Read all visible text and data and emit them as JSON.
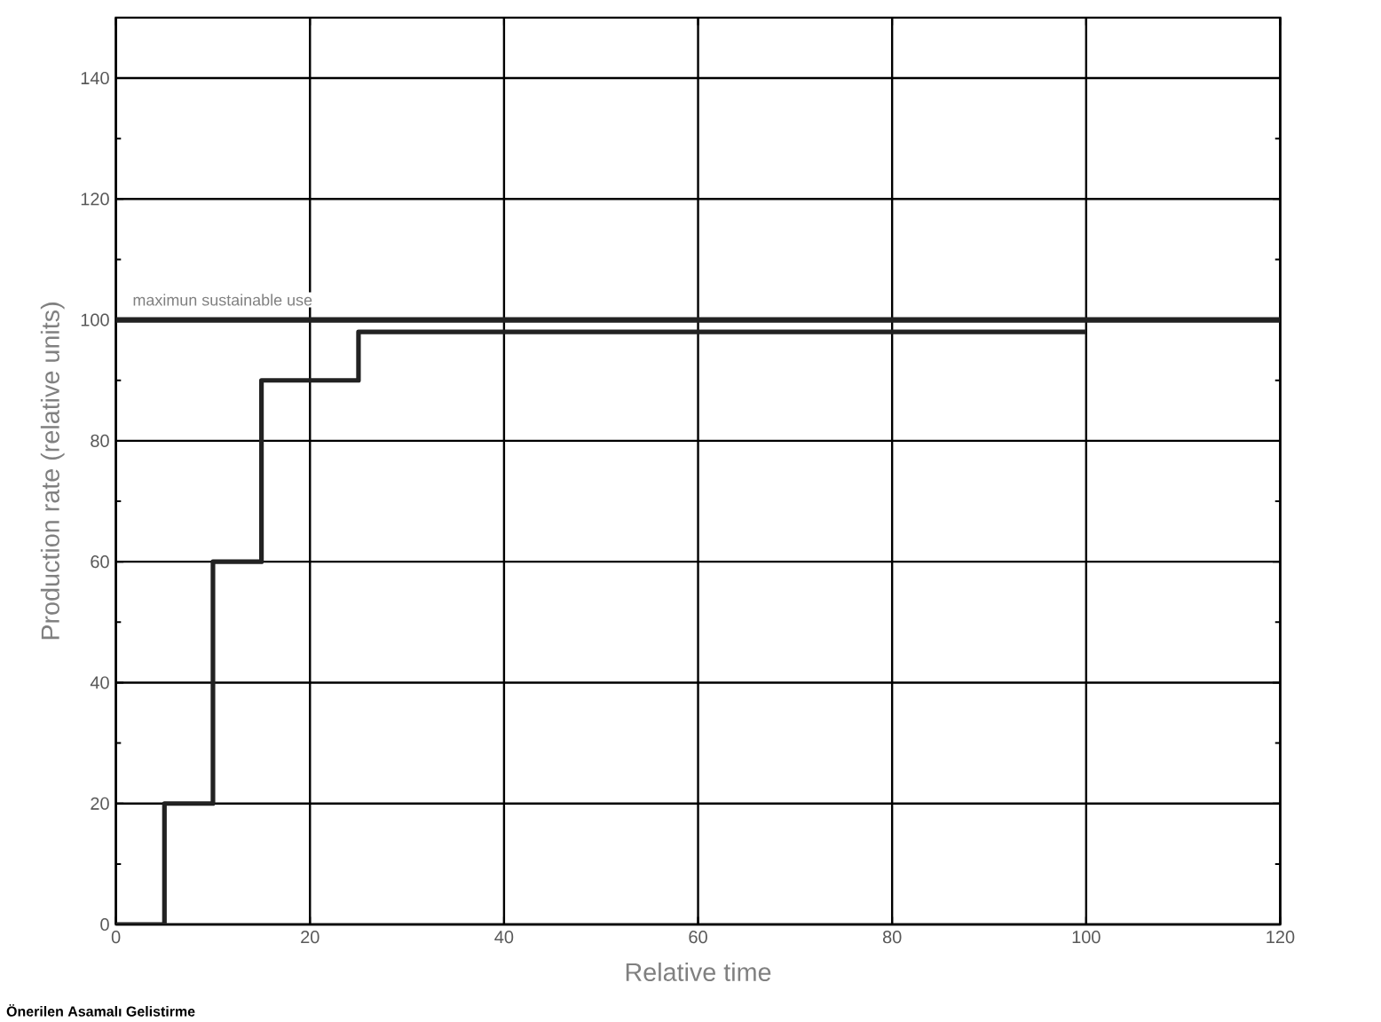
{
  "chart_data": {
    "type": "step",
    "xlabel": "Relative time",
    "ylabel": "Production rate (relative units)",
    "x": [
      0,
      5,
      10,
      15,
      25,
      100
    ],
    "series": [
      {
        "color": "#222222",
        "values": [
          0,
          20,
          60,
          90,
          98,
          98
        ]
      }
    ],
    "xlim": [
      0,
      120
    ],
    "ylim": [
      0,
      150
    ],
    "xticks": [
      0,
      20,
      40,
      60,
      80,
      100,
      120
    ],
    "yticks": [
      0,
      20,
      40,
      60,
      80,
      100,
      120,
      140
    ],
    "grid": true,
    "ref_lines": [
      {
        "axis": "y",
        "value": 100,
        "label": "maximun sustainable use",
        "color": "#222222"
      }
    ],
    "annotations": [
      "Önerilen Asamalı Gelistirme"
    ]
  }
}
